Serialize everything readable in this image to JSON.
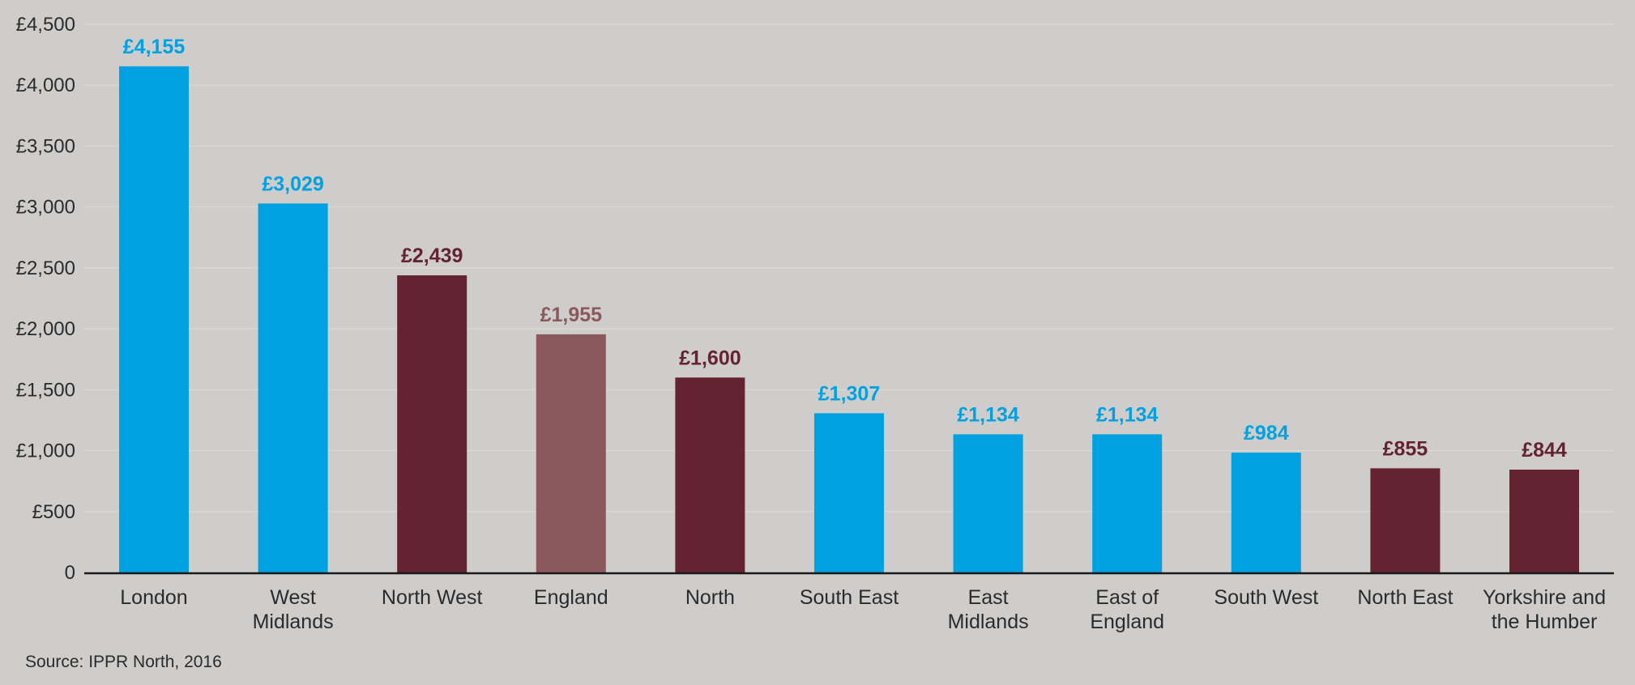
{
  "chart_data": {
    "type": "bar",
    "categories": [
      [
        "London"
      ],
      [
        "West",
        "Midlands"
      ],
      [
        "North West"
      ],
      [
        "England"
      ],
      [
        "North"
      ],
      [
        "South East"
      ],
      [
        "East",
        "Midlands"
      ],
      [
        "East of",
        "England"
      ],
      [
        "South West"
      ],
      [
        "North East"
      ],
      [
        "Yorkshire and",
        "the Humber"
      ]
    ],
    "values": [
      4155,
      3029,
      2439,
      1955,
      1600,
      1307,
      1134,
      1134,
      984,
      855,
      844
    ],
    "value_labels": [
      "£4,155",
      "£3,029",
      "£2,439",
      "£1,955",
      "£1,600",
      "£1,307",
      "£1,134",
      "£1,134",
      "£984",
      "£855",
      "£844"
    ],
    "bar_colors": [
      "#00a1e0",
      "#00a1e0",
      "#632331",
      "#8b585c",
      "#632331",
      "#00a1e0",
      "#00a1e0",
      "#00a1e0",
      "#00a1e0",
      "#632331",
      "#632331"
    ],
    "yticks": [
      0,
      500,
      1000,
      1500,
      2000,
      2500,
      3000,
      3500,
      4000,
      4500
    ],
    "ytick_labels": [
      "0",
      "£500",
      "£1,000",
      "£1,500",
      "£2,000",
      "£2,500",
      "£3,000",
      "£3,500",
      "£4,000",
      "£4,500"
    ],
    "ylim": [
      0,
      4500
    ],
    "grid": true,
    "title": "",
    "xlabel": "",
    "ylabel": ""
  },
  "source": "Source: IPPR North, 2016"
}
